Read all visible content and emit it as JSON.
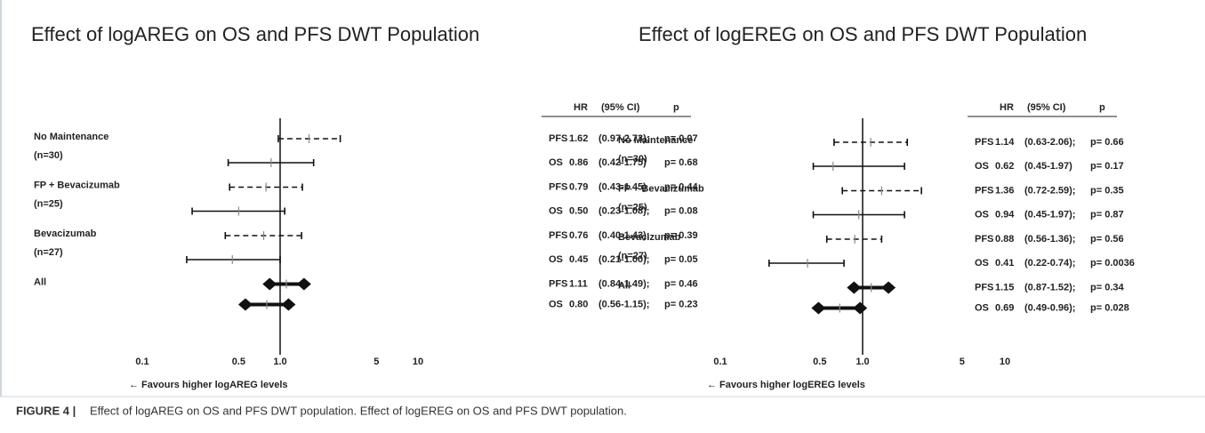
{
  "chart_data": [
    {
      "type": "forest",
      "title": "Effect of logAREG on OS and PFS DWT Population",
      "columns": [
        "HR",
        "(95% CI)",
        "p"
      ],
      "xlabel": "← Favours higher logAREG levels",
      "log_scale": true,
      "xlim": [
        0.1,
        10
      ],
      "xticks": [
        0.1,
        0.5,
        {
          "value": 1,
          "label": "1.0"
        },
        5,
        10
      ],
      "groups": [
        {
          "label": "No Maintenance",
          "n": "(n=30)",
          "rows": [
            {
              "measure": "PFS",
              "hr": 1.62,
              "ci_low": 0.97,
              "ci_high": 2.73,
              "ci_label": "(0.97-2.73);",
              "p_label": "p= 0.07"
            },
            {
              "measure": "OS",
              "hr": 0.86,
              "ci_low": 0.42,
              "ci_high": 1.75,
              "ci_label": "(0.42-1.75)",
              "p_label": "p= 0.68"
            }
          ]
        },
        {
          "label": "FP + Bevacizumab",
          "n": "(n=25)",
          "rows": [
            {
              "measure": "PFS",
              "hr": 0.79,
              "ci_low": 0.43,
              "ci_high": 1.45,
              "ci_label": "(0.43-1.45)",
              "p_label": "p= 0.44"
            },
            {
              "measure": "OS",
              "hr": 0.5,
              "hr_label": "0.50",
              "ci_low": 0.23,
              "ci_high": 1.08,
              "ci_label": "(0.23-1.08);",
              "p_label": "p= 0.08"
            }
          ]
        },
        {
          "label": "Bevacizumab",
          "n": "(n=27)",
          "rows": [
            {
              "measure": "PFS",
              "hr": 0.76,
              "ci_low": 0.4,
              "ci_high": 1.43,
              "ci_label": "(0.40-1.43);",
              "p_label": "p= 0.39"
            },
            {
              "measure": "OS",
              "hr": 0.45,
              "ci_low": 0.21,
              "ci_high": 1.0,
              "ci_label": "(0.21-1.00);",
              "p_label": "p= 0.05"
            }
          ]
        },
        {
          "label": "All",
          "summary": true,
          "rows": [
            {
              "measure": "PFS",
              "hr": 1.11,
              "ci_low": 0.84,
              "ci_high": 1.49,
              "ci_label": "(0.84-1.49);",
              "p_label": "p= 0.46"
            },
            {
              "measure": "OS",
              "hr": 0.8,
              "hr_label": "0.80",
              "ci_low": 0.56,
              "ci_high": 1.15,
              "ci_label": "(0.56-1.15);",
              "p_label": "p= 0.23"
            }
          ]
        }
      ]
    },
    {
      "type": "forest",
      "title": "Effect of logEREG on OS and PFS DWT Population",
      "columns": [
        "HR",
        "(95% CI)",
        "p"
      ],
      "xlabel": "← Favours higher logEREG levels",
      "log_scale": true,
      "xlim": [
        0.1,
        10
      ],
      "xticks": [
        0.1,
        0.5,
        {
          "value": 1,
          "label": "1.0"
        },
        5,
        10
      ],
      "groups": [
        {
          "label": "No Maintenance",
          "n": "(n=30)",
          "rows": [
            {
              "measure": "PFS",
              "hr": 1.14,
              "ci_low": 0.63,
              "ci_high": 2.06,
              "ci_label": "(0.63-2.06);",
              "p_label": "p= 0.66"
            },
            {
              "measure": "OS",
              "hr": 0.62,
              "ci_low": 0.45,
              "ci_high": 1.97,
              "ci_label": "(0.45-1.97)",
              "p_label": "p= 0.17"
            }
          ]
        },
        {
          "label": "FP + Bevacizumab",
          "n": "(n=25)",
          "rows": [
            {
              "measure": "PFS",
              "hr": 1.36,
              "ci_low": 0.72,
              "ci_high": 2.59,
              "ci_label": "(0.72-2.59);",
              "p_label": "p= 0.35"
            },
            {
              "measure": "OS",
              "hr": 0.94,
              "ci_low": 0.45,
              "ci_high": 1.97,
              "ci_label": "(0.45-1.97);",
              "p_label": "p= 0.87"
            }
          ]
        },
        {
          "label": "Bevacizumab",
          "n": "(n=27)",
          "rows": [
            {
              "measure": "PFS",
              "hr": 0.88,
              "ci_low": 0.56,
              "ci_high": 1.36,
              "ci_label": "(0.56-1.36);",
              "p_label": "p= 0.56"
            },
            {
              "measure": "OS",
              "hr": 0.41,
              "ci_low": 0.22,
              "ci_high": 0.74,
              "ci_label": "(0.22-0.74);",
              "p_label": "p= 0.0036"
            }
          ]
        },
        {
          "label": "All",
          "summary": true,
          "rows": [
            {
              "measure": "PFS",
              "hr": 1.15,
              "ci_low": 0.87,
              "ci_high": 1.52,
              "ci_label": "(0.87-1.52);",
              "p_label": "p= 0.34"
            },
            {
              "measure": "OS",
              "hr": 0.69,
              "ci_low": 0.49,
              "ci_high": 0.96,
              "ci_label": "(0.49-0.96);",
              "p_label": "p= 0.028"
            }
          ]
        }
      ]
    }
  ],
  "caption": {
    "label": "FIGURE 4 |",
    "text": "Effect of logAREG on OS and PFS DWT population. Effect of logEREG on OS and PFS DWT population."
  }
}
